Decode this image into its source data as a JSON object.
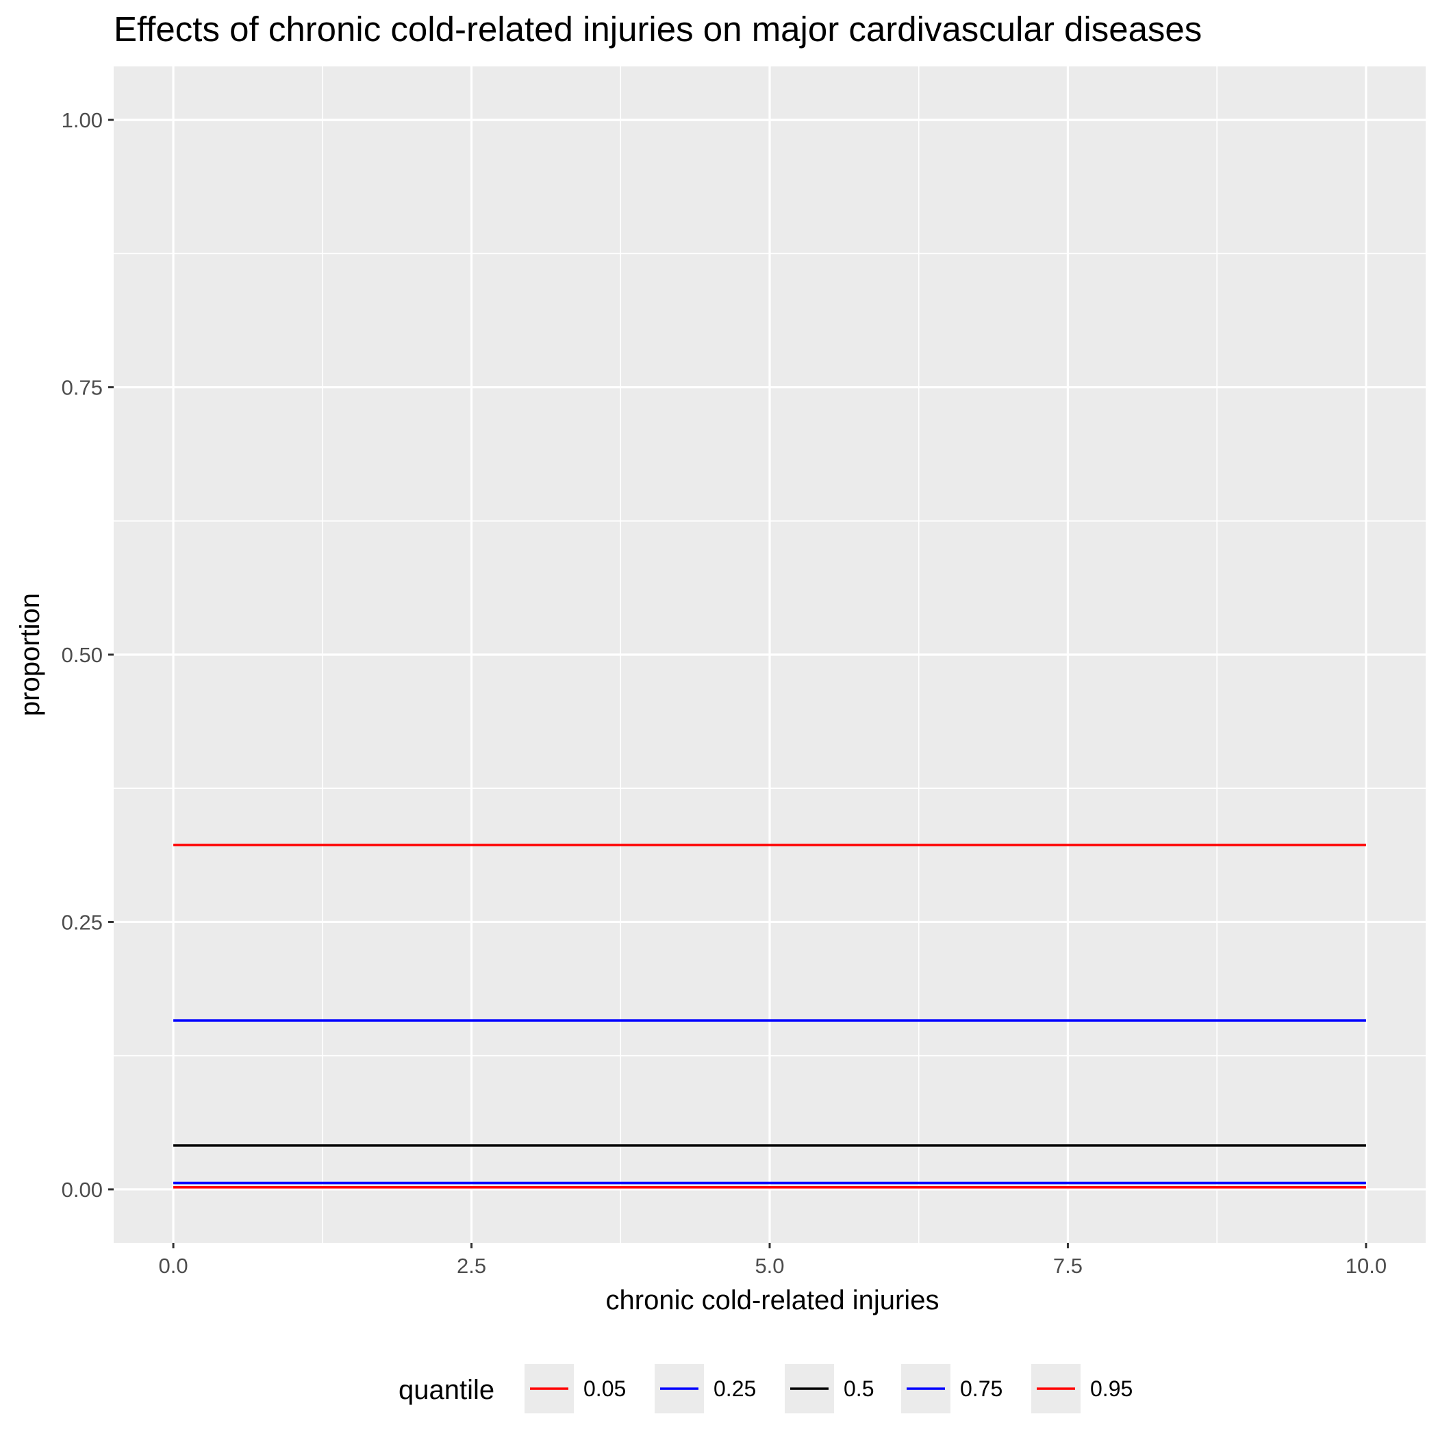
{
  "chart_data": {
    "type": "line",
    "title": "Effects of chronic cold-related injuries on major cardivascular diseases",
    "xlabel": "chronic cold-related injuries",
    "ylabel": "proportion",
    "xlim": [
      -0.5,
      10.5
    ],
    "ylim": [
      -0.05,
      1.05
    ],
    "x_ticks": [
      0.0,
      2.5,
      5.0,
      7.5,
      10.0
    ],
    "x_tick_labels": [
      "0.0",
      "2.5",
      "5.0",
      "7.5",
      "10.0"
    ],
    "y_ticks": [
      0.0,
      0.25,
      0.5,
      0.75,
      1.0
    ],
    "y_tick_labels": [
      "0.00",
      "0.25",
      "0.50",
      "0.75",
      "1.00"
    ],
    "grid": true,
    "legend": {
      "title": "quantile",
      "placement": "bottom"
    },
    "x": [
      0,
      10
    ],
    "series": [
      {
        "name": "0.05",
        "color": "#ff0000",
        "values": [
          0.002,
          0.002
        ]
      },
      {
        "name": "0.25",
        "color": "#0000ff",
        "values": [
          0.006,
          0.006
        ]
      },
      {
        "name": "0.5",
        "color": "#000000",
        "values": [
          0.041,
          0.041
        ]
      },
      {
        "name": "0.75",
        "color": "#0000ff",
        "values": [
          0.158,
          0.158
        ]
      },
      {
        "name": "0.95",
        "color": "#ff0000",
        "values": [
          0.322,
          0.322
        ]
      }
    ],
    "panel_color": "#ebebeb",
    "grid_color": "#ffffff"
  }
}
